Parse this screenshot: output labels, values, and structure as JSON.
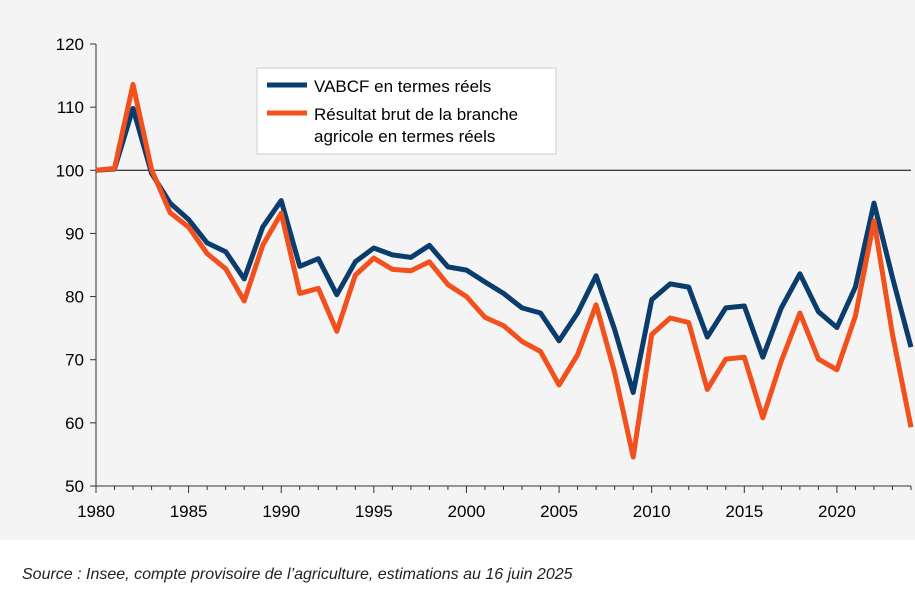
{
  "chart_data": {
    "type": "line",
    "title": "",
    "xlabel": "",
    "ylabel": "",
    "xlim": [
      1980,
      2024
    ],
    "ylim": [
      50,
      120
    ],
    "reference_line": 100,
    "x_ticks": [
      "1980",
      "1985",
      "1990",
      "1995",
      "2000",
      "2005",
      "2010",
      "2015",
      "2020"
    ],
    "y_ticks": [
      "50",
      "60",
      "70",
      "80",
      "90",
      "100",
      "110",
      "120"
    ],
    "legend_position": "top-center",
    "x": [
      1980,
      1981,
      1982,
      1983,
      1984,
      1985,
      1986,
      1987,
      1988,
      1989,
      1990,
      1991,
      1992,
      1993,
      1994,
      1995,
      1996,
      1997,
      1998,
      1999,
      2000,
      2001,
      2002,
      2003,
      2004,
      2005,
      2006,
      2007,
      2008,
      2009,
      2010,
      2011,
      2012,
      2013,
      2014,
      2015,
      2016,
      2017,
      2018,
      2019,
      2020,
      2021,
      2022,
      2023,
      2024
    ],
    "series": [
      {
        "name": "VABCF en termes réels",
        "color": "#0a3d6b",
        "values": [
          100,
          100.2,
          109.8,
          99.5,
          94.8,
          92.2,
          88.5,
          87.1,
          82.8,
          91,
          95.2,
          84.8,
          86,
          80.3,
          85.5,
          87.7,
          86.6,
          86.2,
          88.1,
          84.7,
          84.2,
          82.3,
          80.5,
          78.2,
          77.4,
          73,
          77.4,
          83.3,
          74.8,
          64.8,
          79.5,
          82,
          81.5,
          73.6,
          78.2,
          78.5,
          70.4,
          78.2,
          83.6,
          77.6,
          75.1,
          81.5,
          94.8,
          83,
          72
        ]
      },
      {
        "name": "Résultat brut de la branche\nagricole en termes réels",
        "color": "#f2501c",
        "values": [
          100,
          100.3,
          113.6,
          100.1,
          93.3,
          91,
          86.8,
          84.4,
          79.3,
          88.1,
          93.2,
          80.5,
          81.3,
          74.5,
          83.4,
          86.1,
          84.3,
          84.1,
          85.5,
          81.9,
          80,
          76.7,
          75.4,
          72.9,
          71.3,
          66,
          70.8,
          78.7,
          68,
          54.6,
          74,
          76.6,
          75.9,
          65.3,
          70.1,
          70.4,
          60.8,
          69.8,
          77.4,
          70.1,
          68.4,
          76.9,
          92,
          74,
          59.3
        ]
      }
    ]
  },
  "source": "Source : Insee, compte provisoire de l’agriculture, estimations au 16 juin 2025"
}
